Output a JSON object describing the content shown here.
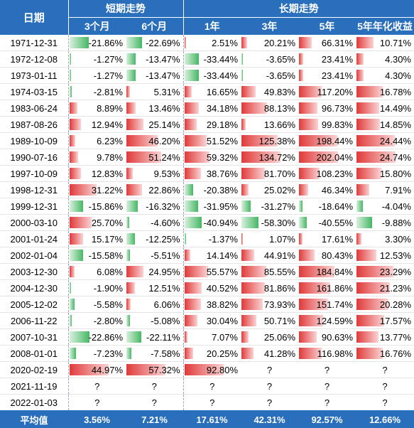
{
  "header": {
    "date_label": "日期",
    "short_group": "短期走势",
    "long_group": "长期走势",
    "cols": [
      "3个月",
      "6个月",
      "1年",
      "3年",
      "5年",
      "5年年化收益"
    ]
  },
  "rows": [
    {
      "date": "1971-12-31",
      "vals": [
        "-21.86%",
        "-22.69%",
        "2.51%",
        "20.21%",
        "66.31%",
        "10.71%"
      ]
    },
    {
      "date": "1972-12-08",
      "vals": [
        "-1.27%",
        "-13.47%",
        "-33.44%",
        "-3.65%",
        "23.41%",
        "4.30%"
      ]
    },
    {
      "date": "1973-01-11",
      "vals": [
        "-1.27%",
        "-13.47%",
        "-33.44%",
        "-3.65%",
        "23.41%",
        "4.30%"
      ]
    },
    {
      "date": "1974-03-15",
      "vals": [
        "-2.81%",
        "5.31%",
        "16.65%",
        "49.83%",
        "117.20%",
        "16.78%"
      ]
    },
    {
      "date": "1983-06-24",
      "vals": [
        "8.89%",
        "13.46%",
        "34.18%",
        "88.13%",
        "96.73%",
        "14.49%"
      ]
    },
    {
      "date": "1987-08-26",
      "vals": [
        "12.94%",
        "25.14%",
        "29.18%",
        "13.66%",
        "99.83%",
        "14.85%"
      ]
    },
    {
      "date": "1989-10-09",
      "vals": [
        "6.23%",
        "46.20%",
        "51.52%",
        "125.38%",
        "198.44%",
        "24.44%"
      ]
    },
    {
      "date": "1990-07-16",
      "vals": [
        "9.78%",
        "51.24%",
        "59.32%",
        "134.72%",
        "202.04%",
        "24.74%"
      ]
    },
    {
      "date": "1997-10-09",
      "vals": [
        "12.83%",
        "9.53%",
        "38.76%",
        "81.70%",
        "108.23%",
        "15.80%"
      ]
    },
    {
      "date": "1998-12-31",
      "vals": [
        "31.22%",
        "22.86%",
        "-20.38%",
        "25.02%",
        "46.34%",
        "7.91%"
      ]
    },
    {
      "date": "1999-12-31",
      "vals": [
        "-15.86%",
        "-16.32%",
        "-31.95%",
        "-31.27%",
        "-18.64%",
        "-4.04%"
      ]
    },
    {
      "date": "2000-03-10",
      "vals": [
        "25.70%",
        "-4.60%",
        "-40.94%",
        "-58.30%",
        "-40.55%",
        "-9.88%"
      ]
    },
    {
      "date": "2001-01-24",
      "vals": [
        "15.17%",
        "-12.25%",
        "-1.37%",
        "1.07%",
        "17.61%",
        "3.30%"
      ]
    },
    {
      "date": "2002-01-04",
      "vals": [
        "-15.58%",
        "-5.51%",
        "14.14%",
        "44.91%",
        "80.43%",
        "12.53%"
      ]
    },
    {
      "date": "2003-12-30",
      "vals": [
        "6.08%",
        "24.95%",
        "55.57%",
        "85.55%",
        "184.84%",
        "23.29%"
      ]
    },
    {
      "date": "2004-12-30",
      "vals": [
        "-1.90%",
        "12.51%",
        "40.52%",
        "81.86%",
        "161.86%",
        "21.23%"
      ]
    },
    {
      "date": "2005-12-02",
      "vals": [
        "-5.58%",
        "6.06%",
        "38.82%",
        "73.93%",
        "151.74%",
        "20.28%"
      ]
    },
    {
      "date": "2006-11-22",
      "vals": [
        "-2.80%",
        "-5.08%",
        "30.04%",
        "50.71%",
        "124.59%",
        "17.57%"
      ]
    },
    {
      "date": "2007-10-31",
      "vals": [
        "-22.86%",
        "-22.11%",
        "7.07%",
        "25.06%",
        "90.63%",
        "13.77%"
      ]
    },
    {
      "date": "2008-01-01",
      "vals": [
        "-7.23%",
        "-7.58%",
        "20.25%",
        "41.28%",
        "116.98%",
        "16.76%"
      ]
    },
    {
      "date": "2020-02-19",
      "vals": [
        "44.97%",
        "57.32%",
        "92.80%",
        "?",
        "?",
        "?"
      ]
    },
    {
      "date": "2021-11-19",
      "vals": [
        "?",
        "?",
        "?",
        "?",
        "?",
        "?"
      ]
    },
    {
      "date": "2022-01-03",
      "vals": [
        "?",
        "?",
        "?",
        "?",
        "?",
        "?"
      ]
    }
  ],
  "average": {
    "label": "平均值",
    "vals": [
      "3.56%",
      "7.21%",
      "17.61%",
      "42.31%",
      "92.57%",
      "12.66%"
    ]
  },
  "colors": {
    "header_bg": "#2a6fbc",
    "positive_bar": "#e03a3a",
    "negative_bar": "#46b865"
  }
}
